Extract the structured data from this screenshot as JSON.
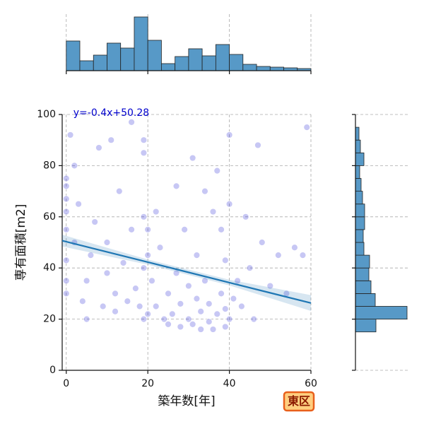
{
  "chart_data": [
    {
      "type": "scatter",
      "xlabel": "築年数[年]",
      "ylabel": "専有面積[m2]",
      "annotation": "y=-0.4x+50.28",
      "color": "#0000cd",
      "line_color": "#1f77b4",
      "annotation_color": "#0000cc",
      "xlim": [
        -1,
        60
      ],
      "ylim": [
        0,
        100
      ],
      "xticks": [
        0,
        20,
        40,
        60
      ],
      "yticks": [
        0,
        20,
        40,
        60,
        80,
        100
      ],
      "grid": true,
      "x": [
        0,
        0,
        0,
        0,
        0,
        0,
        0,
        0,
        1,
        2,
        2,
        3,
        4,
        5,
        5,
        6,
        7,
        8,
        9,
        10,
        10,
        11,
        12,
        12,
        13,
        14,
        15,
        16,
        16,
        17,
        18,
        19,
        19,
        19,
        19,
        19,
        20,
        20,
        20,
        21,
        22,
        22,
        23,
        24,
        25,
        25,
        26,
        27,
        27,
        28,
        28,
        29,
        30,
        30,
        31,
        31,
        32,
        32,
        33,
        33,
        34,
        34,
        35,
        35,
        36,
        36,
        37,
        37,
        38,
        38,
        39,
        39,
        39,
        40,
        40,
        40,
        41,
        42,
        43,
        44,
        45,
        46,
        47,
        48,
        50,
        52,
        54,
        56,
        58,
        59
      ],
      "values": [
        30,
        35,
        43,
        55,
        62,
        67,
        72,
        75,
        92,
        80,
        50,
        65,
        27,
        35,
        20,
        45,
        58,
        87,
        25,
        38,
        50,
        90,
        23,
        30,
        70,
        42,
        27,
        97,
        55,
        32,
        25,
        40,
        20,
        60,
        85,
        90,
        22,
        45,
        55,
        35,
        25,
        62,
        48,
        20,
        30,
        18,
        22,
        72,
        38,
        17,
        26,
        55,
        20,
        33,
        18,
        83,
        28,
        45,
        16,
        23,
        70,
        35,
        19,
        26,
        62,
        16,
        22,
        78,
        30,
        55,
        17,
        24,
        43,
        65,
        92,
        20,
        28,
        35,
        25,
        60,
        40,
        20,
        88,
        50,
        33,
        45,
        30,
        48,
        45,
        95
      ],
      "regression": {
        "x": [
          -1,
          20,
          40,
          60
        ],
        "values": [
          50.68,
          42.28,
          34.28,
          26.28
        ],
        "lower": [
          48.4,
          41.3,
          33.2,
          23.2
        ],
        "upper": [
          53.0,
          43.3,
          35.4,
          29.4
        ]
      }
    },
    {
      "type": "histogram",
      "orientation": "vertical",
      "color": "#5799c7",
      "xlim": [
        -1,
        60
      ],
      "xticks": [
        0,
        20,
        40,
        60
      ],
      "grid": true,
      "bins": [
        0,
        3.33,
        6.67,
        10,
        13.33,
        16.67,
        20,
        23.33,
        26.67,
        30,
        33.33,
        36.67,
        40,
        43.33,
        46.67,
        50,
        53.33,
        56.67,
        60
      ],
      "counts": [
        42,
        14,
        22,
        39,
        32,
        76,
        43,
        10,
        20,
        31,
        21,
        37,
        23,
        9,
        6,
        5,
        4,
        3
      ]
    },
    {
      "type": "histogram",
      "orientation": "horizontal",
      "color": "#5799c7",
      "ylim": [
        0,
        100
      ],
      "yticks": [
        0,
        20,
        40,
        60,
        80,
        100
      ],
      "grid": true,
      "bins": [
        15,
        20,
        25,
        30,
        35,
        40,
        45,
        50,
        55,
        60,
        65,
        70,
        75,
        80,
        85,
        90,
        95
      ],
      "counts": [
        29,
        73,
        28,
        22,
        19,
        20,
        12,
        11,
        13,
        13,
        10,
        8,
        6,
        12,
        7,
        5
      ]
    }
  ],
  "badge": "東区"
}
